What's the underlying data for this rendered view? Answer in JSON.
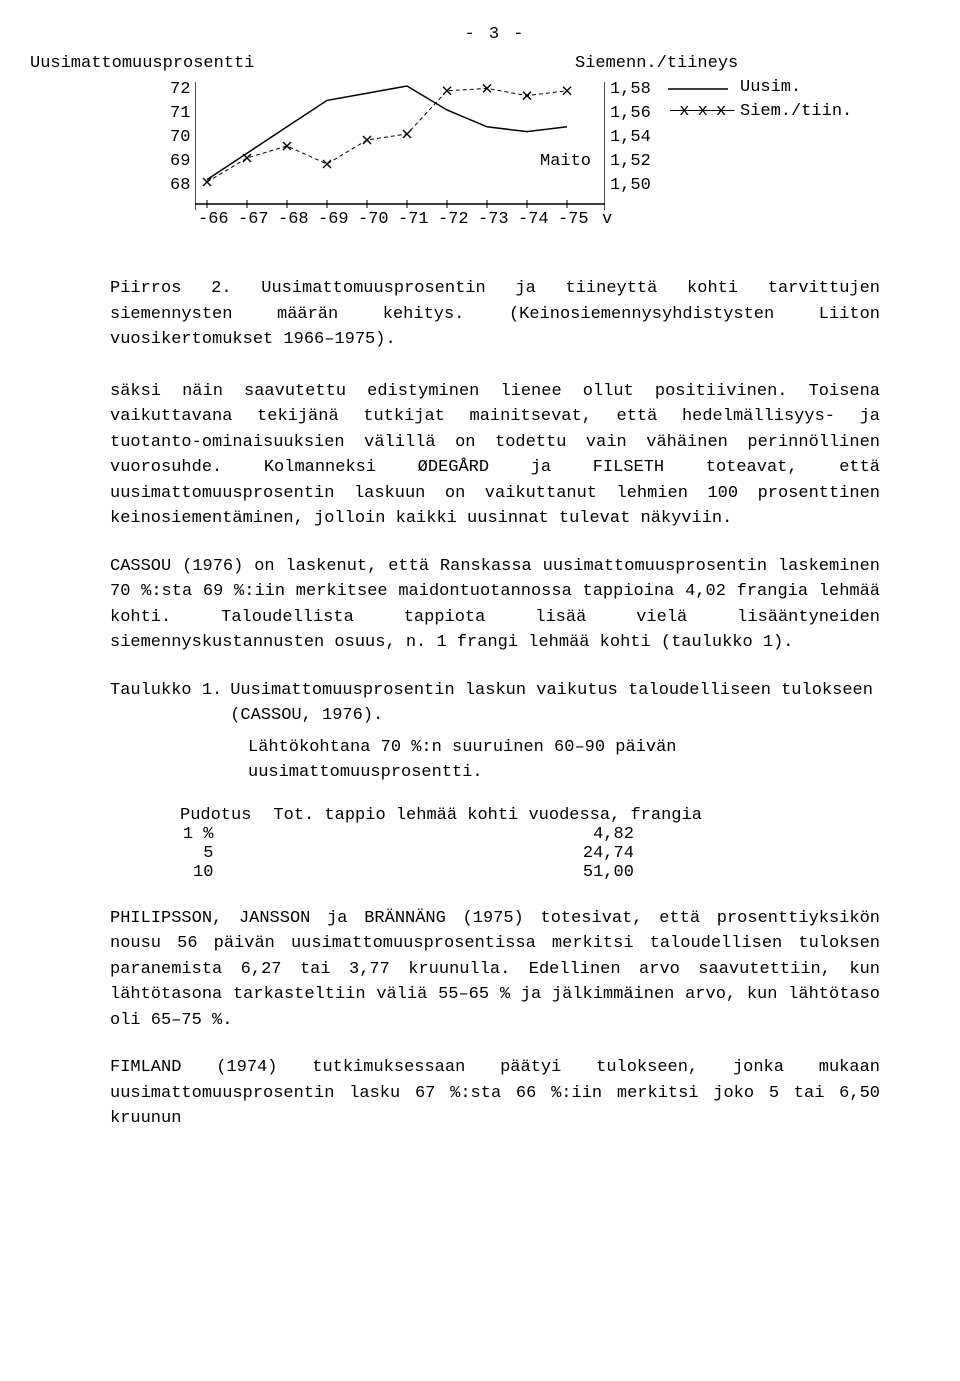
{
  "page_number": "- 3 -",
  "chart": {
    "type": "line-dual-axis",
    "left_axis": {
      "title": "Uusimattomuusprosentti",
      "ticks": [
        72,
        71,
        70,
        69,
        68
      ],
      "ylim": [
        68,
        72
      ]
    },
    "right_axis": {
      "title": "Siemenn./tiineys",
      "ticks": [
        1.58,
        1.56,
        1.54,
        1.52,
        1.5
      ],
      "ylim": [
        1.5,
        1.58
      ],
      "tick_labels": [
        "1,58",
        "1,56",
        "1,54",
        "1,52",
        "1,50"
      ],
      "extra_label": "Maito"
    },
    "x_ticks": [
      "-66",
      "-67",
      "-68",
      "-69",
      "-70",
      "-71",
      "-72",
      "-73",
      "-74",
      "-75",
      "v"
    ],
    "series": [
      {
        "name": "Uusim.",
        "marker": "none",
        "axis": "left",
        "values": [
          68.1,
          69.2,
          70.3,
          71.4,
          71.7,
          72.0,
          71.0,
          70.3,
          70.1,
          70.3
        ],
        "legend_style": "solid"
      },
      {
        "name": "Siem./tiin.",
        "marker": "x",
        "axis": "right",
        "values": [
          1.5,
          1.52,
          1.53,
          1.515,
          1.535,
          1.54,
          1.576,
          1.578,
          1.572,
          1.576
        ],
        "legend_style": "x-marks"
      }
    ],
    "colors": {
      "line": "#000000",
      "axis": "#000000",
      "background": "#ffffff"
    },
    "line_width": 1.5,
    "marker_size": 6
  },
  "caption1_lead": "Piirros 2. ",
  "caption1_all": "Piirros 2. Uusimattomuusprosentin ja tiineyttä kohti tarvittujen siemennysten määrän kehitys. (Keinosiemennysyhdistysten Liiton vuosikertomukset 1966–1975).",
  "para1": "säksi näin saavutettu edistyminen lienee ollut positiivinen. Toisena vaikuttavana tekijänä tutkijat mainitsevat, että hedelmällisyys- ja tuotanto-ominaisuuksien välillä on todettu vain vähäinen perinnöllinen vuorosuhde. Kolmanneksi ØDEGÅRD ja FILSETH toteavat, että uusimattomuusprosentin laskuun on vaikuttanut lehmien 100 prosenttinen keinosiementäminen, jolloin kaikki uusinnat tulevat näkyviin.",
  "para2": "CASSOU (1976) on laskenut, että Ranskassa uusimattomuusprosentin laskeminen 70 %:sta 69 %:iin merkitsee maidontuotannossa tappioina 4,02 frangia lehmää kohti. Taloudellista tappiota lisää vielä lisääntyneiden siemennyskustannusten osuus, n.  1 frangi lehmää kohti (taulukko 1).",
  "tablecap1": "Taulukko 1. Uusimattomuusprosentin laskun vaikutus taloudelliseen tulokseen (CASSOU, 1976).",
  "tablecap2": "Lähtökohtana 70 %:n suuruinen 60–90 päivän uusimattomuusprosentti.",
  "table": {
    "columns": [
      "Pudotus",
      "Tot. tappio lehmää kohti vuodessa, frangia"
    ],
    "rows": [
      [
        "1 %",
        "4,82"
      ],
      [
        "5",
        "24,74"
      ],
      [
        "10",
        "51,00"
      ]
    ]
  },
  "para3": "PHILIPSSON, JANSSON ja BRÄNNÄNG (1975) totesivat, että prosenttiyksikön nousu 56 päivän uusimattomuusprosentissa merkitsi taloudellisen tuloksen paranemista 6,27 tai 3,77 kruunulla. Edellinen arvo saavutettiin, kun lähtötasona tarkasteltiin väliä 55–65 % ja jälkimmäinen arvo, kun lähtötaso oli 65–75 %.",
  "para4": "FIMLAND (1974) tutkimuksessaan päätyi tulokseen, jonka mukaan uusimattomuusprosentin lasku 67 %:sta 66 %:iin merkitsi joko 5 tai 6,50 kruunun"
}
